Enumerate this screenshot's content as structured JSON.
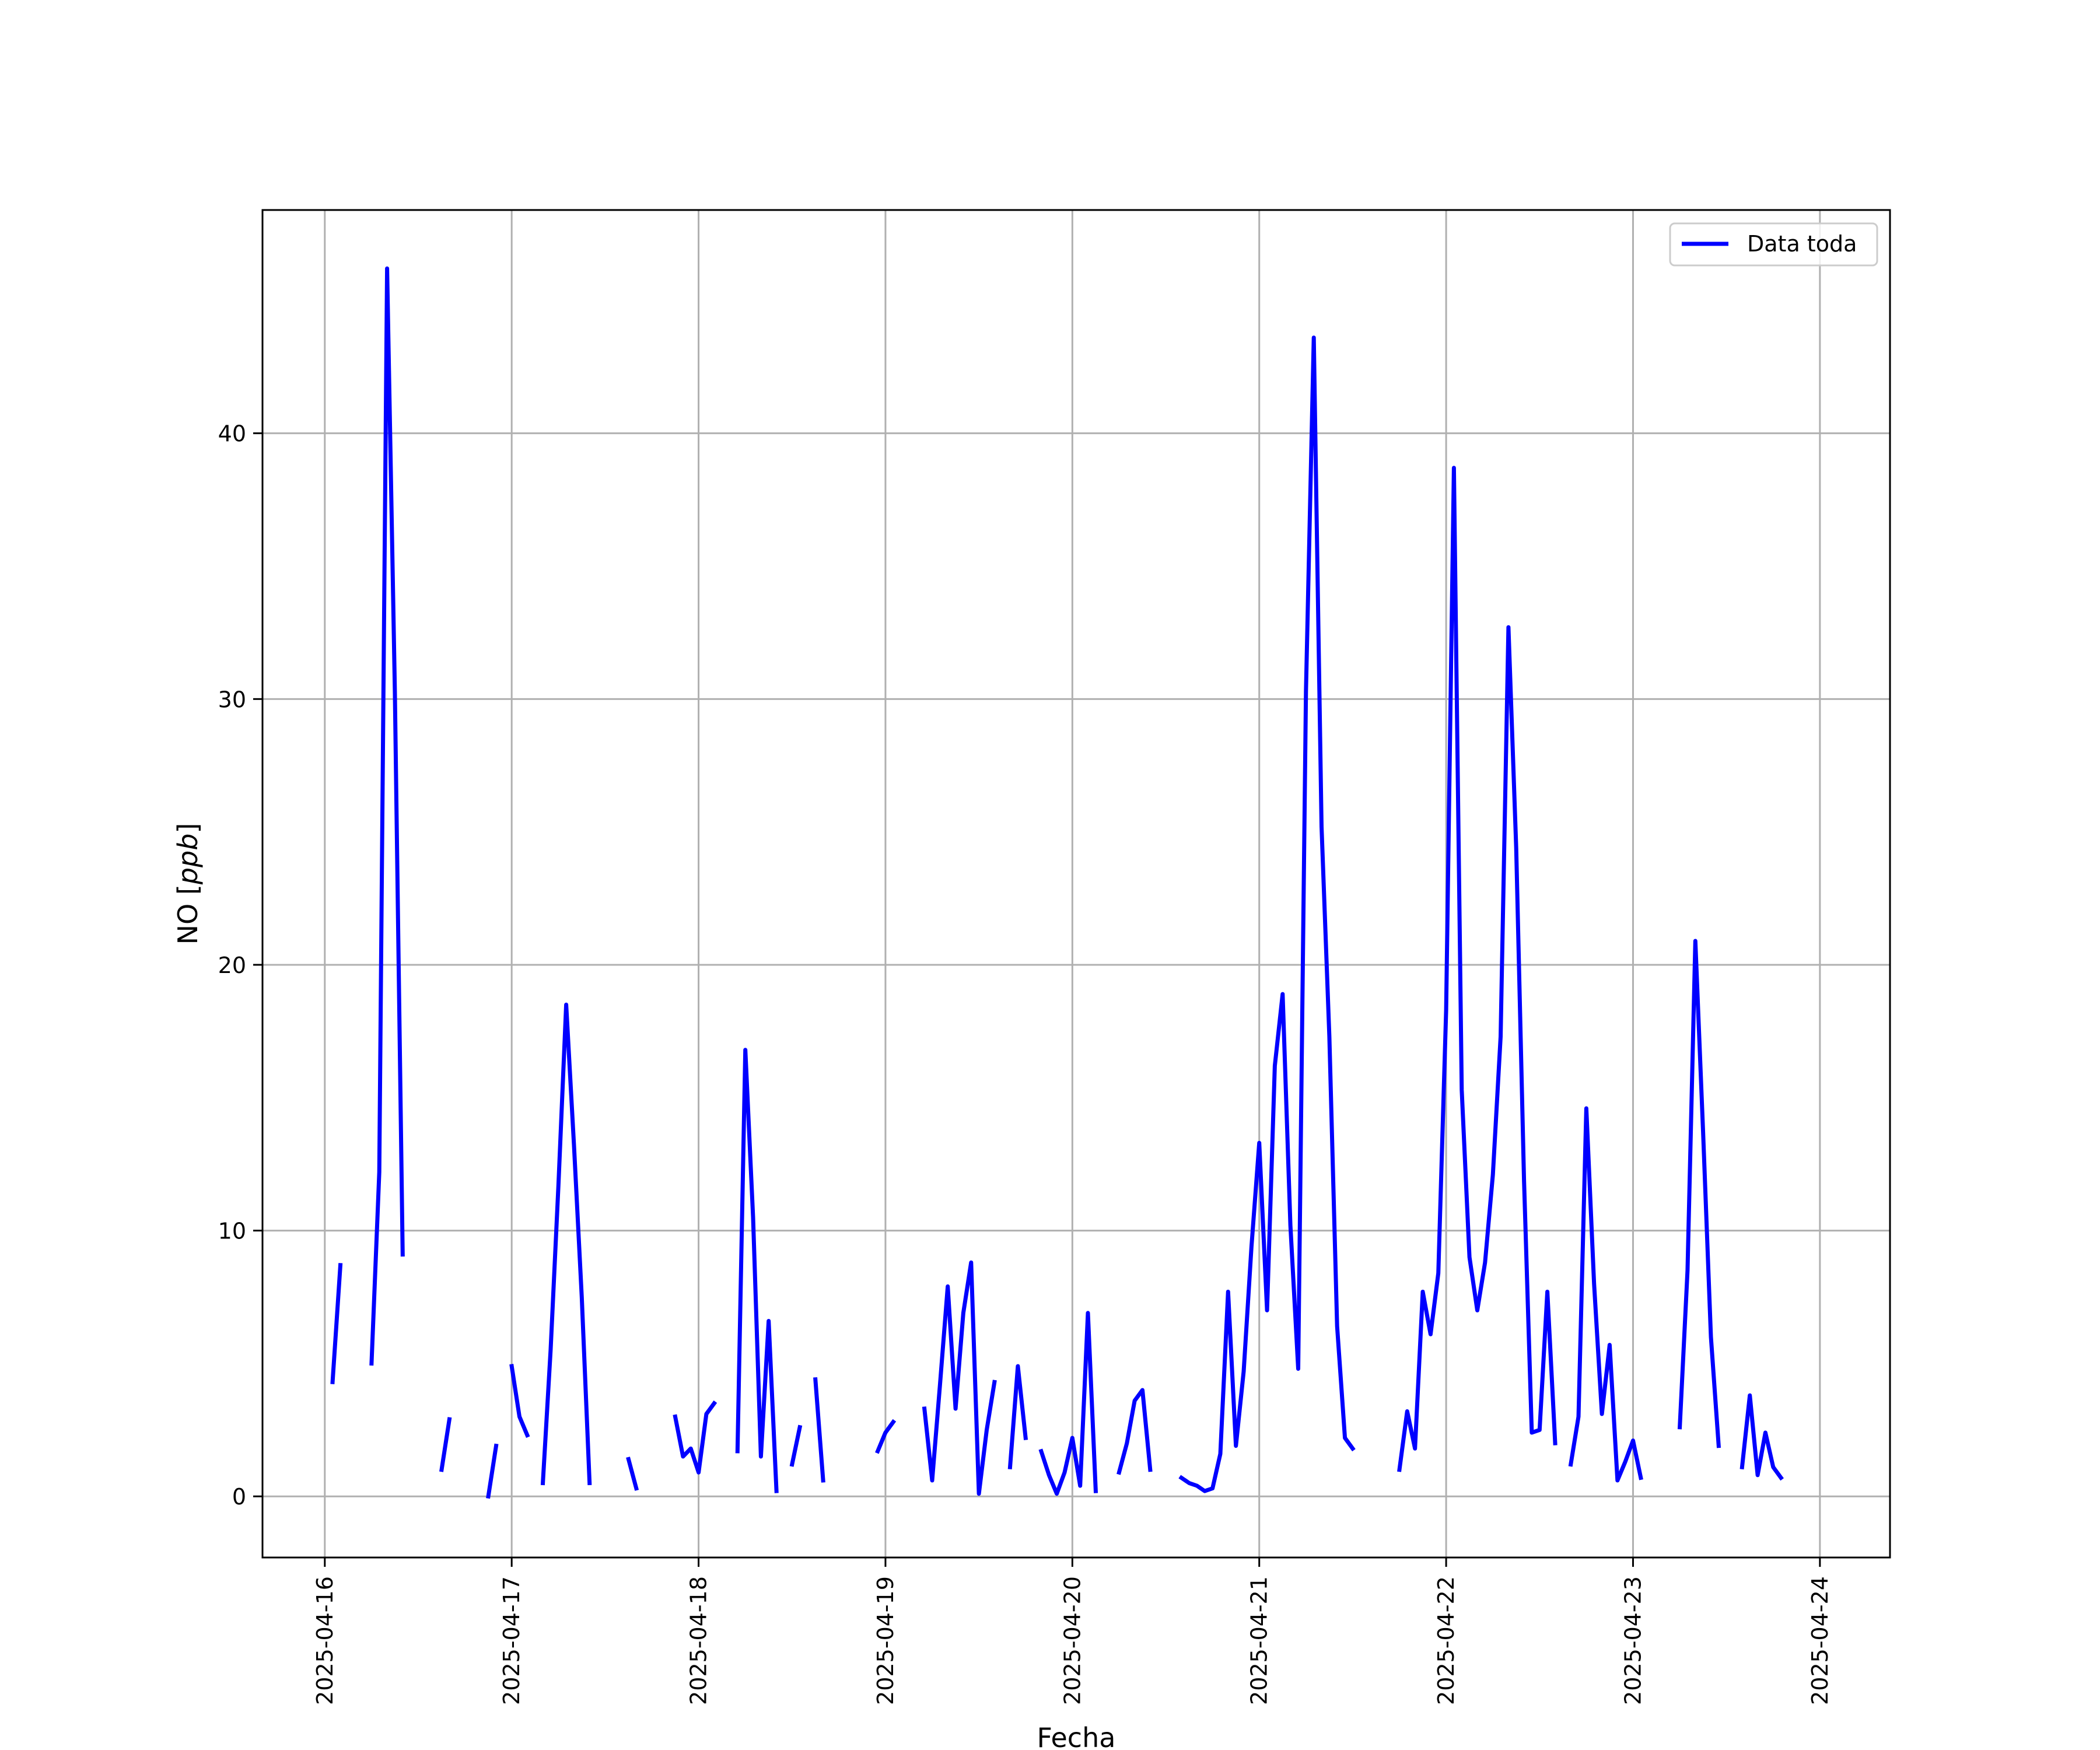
{
  "chart_data": {
    "type": "line",
    "xlabel": "Fecha",
    "ylabel": {
      "prefix": "NO [",
      "unit": "ppb",
      "suffix": "]"
    },
    "xlim": [
      "2025-04-15T16:00",
      "2025-04-24T09:00"
    ],
    "ylim": [
      -2.3,
      48.4
    ],
    "x_ticks": [
      "2025-04-16",
      "2025-04-17",
      "2025-04-18",
      "2025-04-19",
      "2025-04-20",
      "2025-04-21",
      "2025-04-22",
      "2025-04-23",
      "2025-04-24"
    ],
    "y_ticks": [
      0,
      10,
      20,
      30,
      40
    ],
    "grid": true,
    "legend_position": "top-right",
    "series": [
      {
        "name": "Data toda",
        "color": "#0000ff",
        "segments": [
          [
            [
              "2025-04-16T01:00",
              4.3
            ],
            [
              "2025-04-16T02:00",
              8.7
            ]
          ],
          [
            [
              "2025-04-16T06:00",
              5.0
            ],
            [
              "2025-04-16T07:00",
              12.2
            ],
            [
              "2025-04-16T08:00",
              46.2
            ],
            [
              "2025-04-16T09:00",
              30.3
            ],
            [
              "2025-04-16T10:00",
              9.1
            ]
          ],
          [
            [
              "2025-04-16T15:00",
              1.0
            ],
            [
              "2025-04-16T16:00",
              2.9
            ]
          ],
          [
            [
              "2025-04-16T21:00",
              0.0
            ],
            [
              "2025-04-16T22:00",
              1.9
            ]
          ],
          [
            [
              "2025-04-17T00:00",
              4.9
            ],
            [
              "2025-04-17T01:00",
              3.0
            ],
            [
              "2025-04-17T02:00",
              2.3
            ]
          ],
          [
            [
              "2025-04-17T04:00",
              0.5
            ],
            [
              "2025-04-17T05:00",
              5.5
            ],
            [
              "2025-04-17T06:00",
              11.7
            ],
            [
              "2025-04-17T07:00",
              18.5
            ],
            [
              "2025-04-17T08:00",
              13.2
            ],
            [
              "2025-04-17T09:00",
              7.5
            ],
            [
              "2025-04-17T10:00",
              0.5
            ]
          ],
          [
            [
              "2025-04-17T15:00",
              1.4
            ],
            [
              "2025-04-17T16:00",
              0.3
            ]
          ],
          [
            [
              "2025-04-17T21:00",
              3.0
            ],
            [
              "2025-04-17T22:00",
              1.5
            ],
            [
              "2025-04-17T23:00",
              1.8
            ],
            [
              "2025-04-18T00:00",
              0.9
            ],
            [
              "2025-04-18T01:00",
              3.1
            ],
            [
              "2025-04-18T02:00",
              3.5
            ]
          ],
          [
            [
              "2025-04-18T05:00",
              1.7
            ],
            [
              "2025-04-18T06:00",
              16.8
            ],
            [
              "2025-04-18T07:00",
              10.5
            ],
            [
              "2025-04-18T08:00",
              1.5
            ],
            [
              "2025-04-18T09:00",
              6.6
            ],
            [
              "2025-04-18T10:00",
              0.2
            ]
          ],
          [
            [
              "2025-04-18T12:00",
              1.2
            ],
            [
              "2025-04-18T13:00",
              2.6
            ]
          ],
          [
            [
              "2025-04-18T15:00",
              4.4
            ],
            [
              "2025-04-18T16:00",
              0.6
            ]
          ],
          [
            [
              "2025-04-18T23:00",
              1.7
            ],
            [
              "2025-04-19T00:00",
              2.4
            ],
            [
              "2025-04-19T01:00",
              2.8
            ]
          ],
          [
            [
              "2025-04-19T05:00",
              3.3
            ],
            [
              "2025-04-19T06:00",
              0.6
            ],
            [
              "2025-04-19T07:00",
              4.2
            ],
            [
              "2025-04-19T08:00",
              7.9
            ],
            [
              "2025-04-19T09:00",
              3.3
            ],
            [
              "2025-04-19T10:00",
              6.9
            ],
            [
              "2025-04-19T11:00",
              8.8
            ],
            [
              "2025-04-19T12:00",
              0.1
            ],
            [
              "2025-04-19T13:00",
              2.5
            ],
            [
              "2025-04-19T14:00",
              4.3
            ]
          ],
          [
            [
              "2025-04-19T16:00",
              1.1
            ],
            [
              "2025-04-19T17:00",
              4.9
            ],
            [
              "2025-04-19T18:00",
              2.2
            ]
          ],
          [
            [
              "2025-04-19T20:00",
              1.7
            ],
            [
              "2025-04-19T21:00",
              0.8
            ],
            [
              "2025-04-19T22:00",
              0.1
            ],
            [
              "2025-04-19T23:00",
              0.9
            ],
            [
              "2025-04-20T00:00",
              2.2
            ],
            [
              "2025-04-20T01:00",
              0.4
            ],
            [
              "2025-04-20T02:00",
              6.9
            ],
            [
              "2025-04-20T03:00",
              0.2
            ]
          ],
          [
            [
              "2025-04-20T06:00",
              0.9
            ],
            [
              "2025-04-20T07:00",
              2.0
            ],
            [
              "2025-04-20T08:00",
              3.6
            ],
            [
              "2025-04-20T09:00",
              4.0
            ],
            [
              "2025-04-20T10:00",
              1.0
            ]
          ],
          [
            [
              "2025-04-20T14:00",
              0.7
            ],
            [
              "2025-04-20T15:00",
              0.5
            ],
            [
              "2025-04-20T16:00",
              0.4
            ],
            [
              "2025-04-20T17:00",
              0.2
            ],
            [
              "2025-04-20T18:00",
              0.3
            ],
            [
              "2025-04-20T19:00",
              1.6
            ],
            [
              "2025-04-20T20:00",
              7.7
            ],
            [
              "2025-04-20T21:00",
              1.9
            ],
            [
              "2025-04-20T22:00",
              4.7
            ],
            [
              "2025-04-20T23:00",
              9.4
            ],
            [
              "2025-04-21T00:00",
              13.3
            ],
            [
              "2025-04-21T01:00",
              7.0
            ],
            [
              "2025-04-21T02:00",
              16.2
            ],
            [
              "2025-04-21T03:00",
              18.9
            ],
            [
              "2025-04-21T04:00",
              10.2
            ],
            [
              "2025-04-21T05:00",
              4.8
            ],
            [
              "2025-04-21T06:00",
              30.3
            ],
            [
              "2025-04-21T07:00",
              43.6
            ],
            [
              "2025-04-21T08:00",
              25.2
            ],
            [
              "2025-04-21T09:00",
              17.3
            ],
            [
              "2025-04-21T10:00",
              6.4
            ],
            [
              "2025-04-21T11:00",
              2.2
            ],
            [
              "2025-04-21T12:00",
              1.8
            ]
          ],
          [
            [
              "2025-04-21T18:00",
              1.0
            ],
            [
              "2025-04-21T19:00",
              3.2
            ],
            [
              "2025-04-21T20:00",
              1.8
            ],
            [
              "2025-04-21T21:00",
              7.7
            ],
            [
              "2025-04-21T22:00",
              6.1
            ],
            [
              "2025-04-21T23:00",
              8.4
            ],
            [
              "2025-04-22T00:00",
              18.3
            ],
            [
              "2025-04-22T01:00",
              38.7
            ],
            [
              "2025-04-22T02:00",
              15.3
            ],
            [
              "2025-04-22T03:00",
              9.0
            ],
            [
              "2025-04-22T04:00",
              7.0
            ],
            [
              "2025-04-22T05:00",
              8.8
            ],
            [
              "2025-04-22T06:00",
              12.1
            ],
            [
              "2025-04-22T07:00",
              17.3
            ],
            [
              "2025-04-22T08:00",
              32.7
            ],
            [
              "2025-04-22T09:00",
              24.4
            ],
            [
              "2025-04-22T10:00",
              11.9
            ],
            [
              "2025-04-22T11:00",
              2.4
            ],
            [
              "2025-04-22T12:00",
              2.5
            ],
            [
              "2025-04-22T13:00",
              7.7
            ],
            [
              "2025-04-22T14:00",
              2.0
            ]
          ],
          [
            [
              "2025-04-22T16:00",
              1.2
            ],
            [
              "2025-04-22T17:00",
              3.0
            ],
            [
              "2025-04-22T18:00",
              14.6
            ],
            [
              "2025-04-22T19:00",
              8.0
            ],
            [
              "2025-04-22T20:00",
              3.1
            ],
            [
              "2025-04-22T21:00",
              5.7
            ],
            [
              "2025-04-22T22:00",
              0.6
            ],
            [
              "2025-04-22T23:00",
              1.3
            ],
            [
              "2025-04-23T00:00",
              2.1
            ],
            [
              "2025-04-23T01:00",
              0.7
            ]
          ],
          [
            [
              "2025-04-23T06:00",
              2.6
            ],
            [
              "2025-04-23T07:00",
              8.5
            ],
            [
              "2025-04-23T08:00",
              20.9
            ],
            [
              "2025-04-23T09:00",
              13.7
            ],
            [
              "2025-04-23T10:00",
              6.0
            ],
            [
              "2025-04-23T11:00",
              1.9
            ]
          ],
          [
            [
              "2025-04-23T14:00",
              1.1
            ],
            [
              "2025-04-23T15:00",
              3.8
            ],
            [
              "2025-04-23T16:00",
              0.8
            ],
            [
              "2025-04-23T17:00",
              2.4
            ],
            [
              "2025-04-23T18:00",
              1.1
            ],
            [
              "2025-04-23T19:00",
              0.7
            ]
          ]
        ]
      }
    ]
  }
}
